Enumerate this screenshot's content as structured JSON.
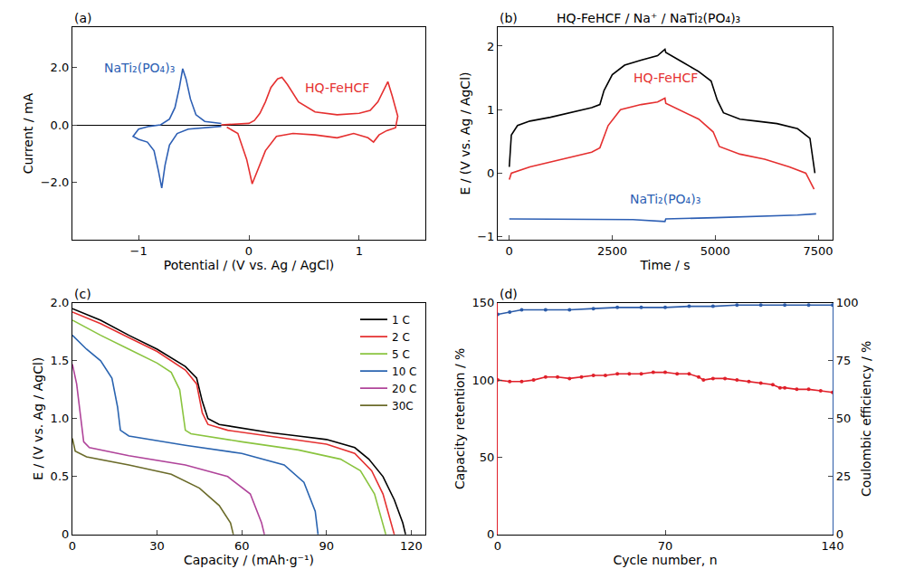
{
  "chart_data": [
    {
      "type": "line",
      "title": "(a)",
      "x_label": "Potential / (V vs. Ag / AgCl)",
      "y_label": "Current / mA",
      "xlim": [
        -1.6,
        1.6
      ],
      "xticks": [
        {
          "value": -1,
          "label": "−1"
        },
        0,
        1
      ],
      "ylim": [
        -4,
        3.4
      ],
      "yticks": [
        {
          "value": -2,
          "label": "−2.0"
        },
        {
          "value": 0,
          "label": "0.0"
        },
        {
          "value": 2,
          "label": "2.0"
        }
      ],
      "grid": false,
      "series": [
        {
          "name": "NaTi₂(PO₄)₃",
          "color": "#2d5fb4",
          "x": [
            -0.25,
            -0.4,
            -0.55,
            -0.65,
            -0.72,
            -0.76,
            -0.79,
            -0.82,
            -0.86,
            -0.92,
            -1.0,
            -1.05,
            -1.0,
            -0.9,
            -0.8,
            -0.72,
            -0.67,
            -0.63,
            -0.6,
            -0.57,
            -0.53,
            -0.48,
            -0.4,
            -0.25
          ],
          "values": [
            -0.05,
            -0.1,
            -0.15,
            -0.3,
            -0.7,
            -1.4,
            -2.2,
            -1.6,
            -0.9,
            -0.6,
            -0.5,
            -0.4,
            -0.15,
            -0.05,
            0.0,
            0.2,
            0.6,
            1.3,
            1.95,
            1.6,
            0.9,
            0.35,
            0.12,
            0.05
          ]
        },
        {
          "name": "HQ-FeHCF",
          "color": "#e53030",
          "x": [
            -0.25,
            -0.1,
            0.0,
            0.05,
            0.1,
            0.15,
            0.2,
            0.26,
            0.3,
            0.35,
            0.45,
            0.6,
            0.8,
            1.0,
            1.1,
            1.17,
            1.22,
            1.26,
            1.3,
            1.35,
            1.33,
            1.25,
            1.18,
            1.13,
            1.08,
            0.95,
            0.8,
            0.6,
            0.4,
            0.25,
            0.15,
            0.08,
            0.03,
            -0.02,
            -0.1,
            -0.2
          ],
          "values": [
            0.0,
            0.02,
            0.05,
            0.15,
            0.4,
            0.8,
            1.3,
            1.6,
            1.65,
            1.4,
            0.8,
            0.45,
            0.35,
            0.4,
            0.5,
            0.8,
            1.2,
            1.5,
            1.0,
            0.3,
            -0.1,
            -0.2,
            -0.35,
            -0.6,
            -0.45,
            -0.3,
            -0.45,
            -0.35,
            -0.3,
            -0.4,
            -0.9,
            -1.6,
            -2.05,
            -1.2,
            -0.3,
            -0.08
          ]
        }
      ]
    },
    {
      "type": "line",
      "title": "(b)",
      "x_label": "Time / s",
      "y_label": "E / (V vs. Ag / AgCl)",
      "xlim": [
        -280,
        7850
      ],
      "xticks": [
        0,
        2500,
        5000,
        7500
      ],
      "ylim": [
        -1.05,
        2.3
      ],
      "yticks": [
        {
          "value": -1,
          "label": "−1"
        },
        0,
        1,
        2
      ],
      "grid": false,
      "series": [
        {
          "name": "HQ-FeHCF / Na⁺ / NaTi₂(PO₄)₃",
          "color": "#000000",
          "x": [
            0,
            50,
            200,
            500,
            1000,
            1500,
            2000,
            2200,
            2300,
            2500,
            2800,
            3200,
            3600,
            3780,
            3800,
            4200,
            4600,
            4900,
            5050,
            5200,
            5600,
            6000,
            6500,
            7000,
            7300,
            7420
          ],
          "values": [
            0.1,
            0.6,
            0.75,
            0.82,
            0.88,
            0.95,
            1.03,
            1.08,
            1.3,
            1.55,
            1.7,
            1.78,
            1.85,
            1.95,
            1.9,
            1.75,
            1.6,
            1.45,
            1.15,
            0.95,
            0.85,
            0.82,
            0.78,
            0.7,
            0.55,
            0.0
          ]
        },
        {
          "name": "HQ-FeHCF",
          "color": "#e53030",
          "x": [
            0,
            50,
            500,
            1000,
            1500,
            2000,
            2200,
            2400,
            2700,
            3200,
            3600,
            3780,
            3800,
            4200,
            4600,
            4950,
            5100,
            5600,
            6200,
            6800,
            7200,
            7400
          ],
          "values": [
            -0.1,
            0.0,
            0.1,
            0.18,
            0.25,
            0.33,
            0.4,
            0.75,
            1.0,
            1.08,
            1.12,
            1.18,
            1.1,
            0.98,
            0.85,
            0.65,
            0.42,
            0.3,
            0.22,
            0.1,
            0.0,
            -0.25
          ]
        },
        {
          "name": "NaTi₂(PO₄)₃",
          "color": "#2d5fb4",
          "x": [
            0,
            1000,
            2000,
            3000,
            3780,
            3800,
            5000,
            6000,
            7000,
            7450
          ],
          "values": [
            -0.72,
            -0.72,
            -0.73,
            -0.73,
            -0.76,
            -0.72,
            -0.7,
            -0.68,
            -0.66,
            -0.64
          ]
        }
      ]
    },
    {
      "type": "line",
      "title": "(c)",
      "x_label": "Capacity / (mAh·g⁻¹)",
      "y_label": "E / (V vs. Ag / AgCl)",
      "xlim": [
        0,
        125
      ],
      "xticks": [
        0,
        30,
        60,
        90,
        120
      ],
      "ylim": [
        0,
        2.0
      ],
      "yticks": [
        0,
        0.5,
        {
          "value": 1,
          "label": "1.0"
        },
        1.5,
        {
          "value": 2,
          "label": "2.0"
        }
      ],
      "grid": false,
      "legend": "upper right",
      "series": [
        {
          "name": "1 C",
          "color": "#000000",
          "x": [
            0,
            10,
            20,
            30,
            40,
            44,
            46,
            48,
            52,
            60,
            70,
            80,
            90,
            100,
            105,
            110,
            114,
            117,
            118
          ],
          "values": [
            1.95,
            1.85,
            1.72,
            1.6,
            1.45,
            1.35,
            1.15,
            1.0,
            0.95,
            0.92,
            0.88,
            0.85,
            0.82,
            0.75,
            0.65,
            0.5,
            0.3,
            0.1,
            0
          ]
        },
        {
          "name": "2 C",
          "color": "#e53030",
          "x": [
            0,
            10,
            20,
            30,
            40,
            44,
            46,
            48,
            55,
            70,
            90,
            100,
            106,
            110,
            113,
            114
          ],
          "values": [
            1.92,
            1.82,
            1.7,
            1.58,
            1.42,
            1.3,
            1.05,
            0.95,
            0.9,
            0.85,
            0.78,
            0.7,
            0.55,
            0.35,
            0.1,
            0
          ]
        },
        {
          "name": "5 C",
          "color": "#8ac43f",
          "x": [
            0,
            10,
            20,
            30,
            35,
            38,
            40,
            42,
            60,
            80,
            95,
            102,
            107,
            110,
            111
          ],
          "values": [
            1.85,
            1.72,
            1.6,
            1.48,
            1.4,
            1.25,
            0.9,
            0.87,
            0.8,
            0.73,
            0.65,
            0.55,
            0.35,
            0.1,
            0
          ]
        },
        {
          "name": "10 C",
          "color": "#2a64b0",
          "x": [
            0,
            5,
            10,
            14,
            16,
            17,
            20,
            40,
            60,
            75,
            82,
            86,
            87
          ],
          "values": [
            1.72,
            1.6,
            1.5,
            1.35,
            1.1,
            0.9,
            0.85,
            0.77,
            0.7,
            0.6,
            0.45,
            0.2,
            0
          ]
        },
        {
          "name": "20 C",
          "color": "#b0449a",
          "x": [
            0,
            1.5,
            3,
            4,
            6,
            20,
            40,
            55,
            63,
            67,
            68
          ],
          "values": [
            1.47,
            1.3,
            1.0,
            0.8,
            0.75,
            0.68,
            0.6,
            0.5,
            0.35,
            0.1,
            0
          ]
        },
        {
          "name": "30C",
          "color": "#6b6b2a",
          "x": [
            0,
            1,
            5,
            20,
            35,
            45,
            52,
            56,
            57
          ],
          "values": [
            0.83,
            0.72,
            0.67,
            0.6,
            0.52,
            0.4,
            0.25,
            0.1,
            0
          ]
        }
      ]
    },
    {
      "type": "line",
      "title": "(d)",
      "x_label": "Cycle number, n",
      "y_label": "Capacity retention / %",
      "y2_label": "Coulombic efficiency / %",
      "xlim": [
        0,
        140
      ],
      "xticks": [
        0,
        70,
        140
      ],
      "ylim": [
        0,
        150
      ],
      "yticks": [
        0,
        50,
        100,
        150
      ],
      "y2lim": [
        0,
        100
      ],
      "y2ticks": [
        0,
        25,
        50,
        75,
        100
      ],
      "grid": false,
      "marker": "circle",
      "series": [
        {
          "color": "#e0202a",
          "x": [
            0,
            5,
            10,
            15,
            20,
            25,
            30,
            35,
            40,
            45,
            50,
            55,
            60,
            65,
            70,
            75,
            80,
            84,
            86,
            90,
            95,
            100,
            105,
            110,
            115,
            118,
            120,
            125,
            130,
            135,
            140
          ],
          "values": [
            100,
            99,
            99,
            100,
            102,
            102,
            101,
            102,
            103,
            103,
            104,
            104,
            104,
            105,
            105,
            104,
            104,
            102,
            100,
            101,
            101,
            100,
            99,
            98,
            97,
            95,
            95,
            94,
            94,
            93,
            92
          ]
        },
        {
          "color": "#2b5ba8",
          "axis": "y2",
          "x": [
            0,
            5,
            10,
            20,
            30,
            40,
            50,
            60,
            70,
            80,
            90,
            100,
            110,
            120,
            130,
            140
          ],
          "values": [
            95,
            96,
            97,
            97,
            97,
            97.5,
            98,
            98,
            98,
            98.5,
            98.5,
            99,
            99,
            99,
            99,
            99
          ]
        }
      ]
    }
  ]
}
